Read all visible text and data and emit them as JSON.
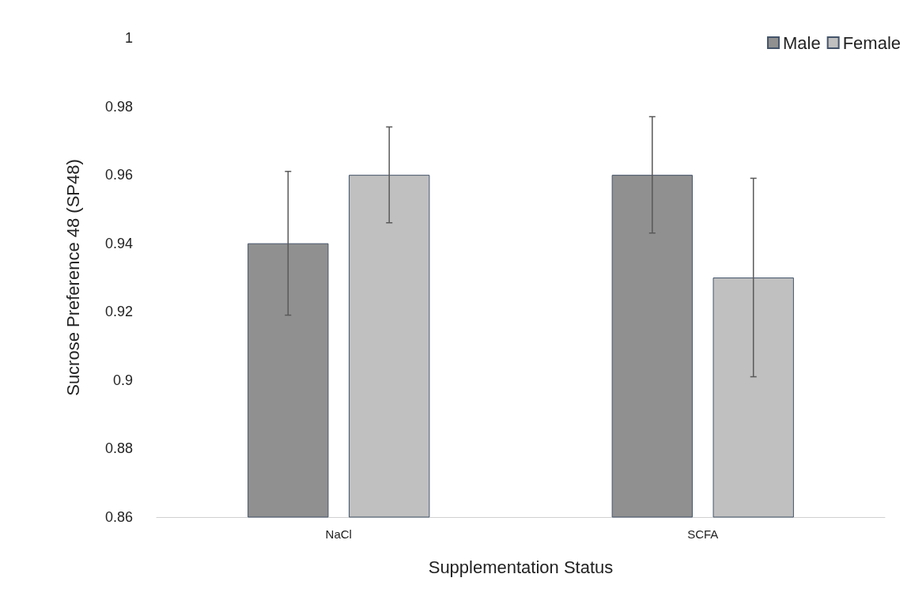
{
  "chart_data": {
    "type": "bar",
    "xlabel": "Supplementation Status",
    "ylabel": "Sucrose Preference 48 (SP48)",
    "categories": [
      "NaCl",
      "SCFA"
    ],
    "series": [
      {
        "name": "Male",
        "color": "#909090",
        "values": [
          0.94,
          0.96
        ],
        "errors": [
          0.021,
          0.017
        ]
      },
      {
        "name": "Female",
        "color": "#c0c0c0",
        "values": [
          0.96,
          0.93
        ],
        "errors": [
          0.014,
          0.029
        ]
      }
    ],
    "ylim": [
      0.86,
      1
    ],
    "yticks": [
      0.86,
      0.88,
      0.9,
      0.92,
      0.94,
      0.96,
      0.98,
      1
    ],
    "grid": false,
    "legend": "top right"
  }
}
